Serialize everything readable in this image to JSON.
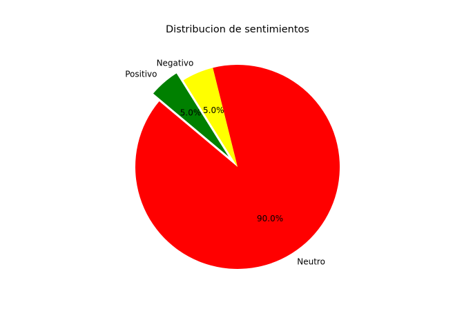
{
  "chart_data": {
    "type": "pie",
    "title": "Distribucion de sentimientos",
    "slices": [
      {
        "label": "Neutro",
        "value": 90.0,
        "pct_label": "90.0%",
        "color": "#ff0000",
        "explode": false
      },
      {
        "label": "Negativo",
        "value": 5.0,
        "pct_label": "5.0%",
        "color": "#ffff00",
        "explode": false
      },
      {
        "label": "Positivo",
        "value": 5.0,
        "pct_label": "5.0%",
        "color": "#008000",
        "explode": true
      }
    ],
    "start_angle_deg": 140,
    "direction": "counterclockwise",
    "legend": "none"
  }
}
